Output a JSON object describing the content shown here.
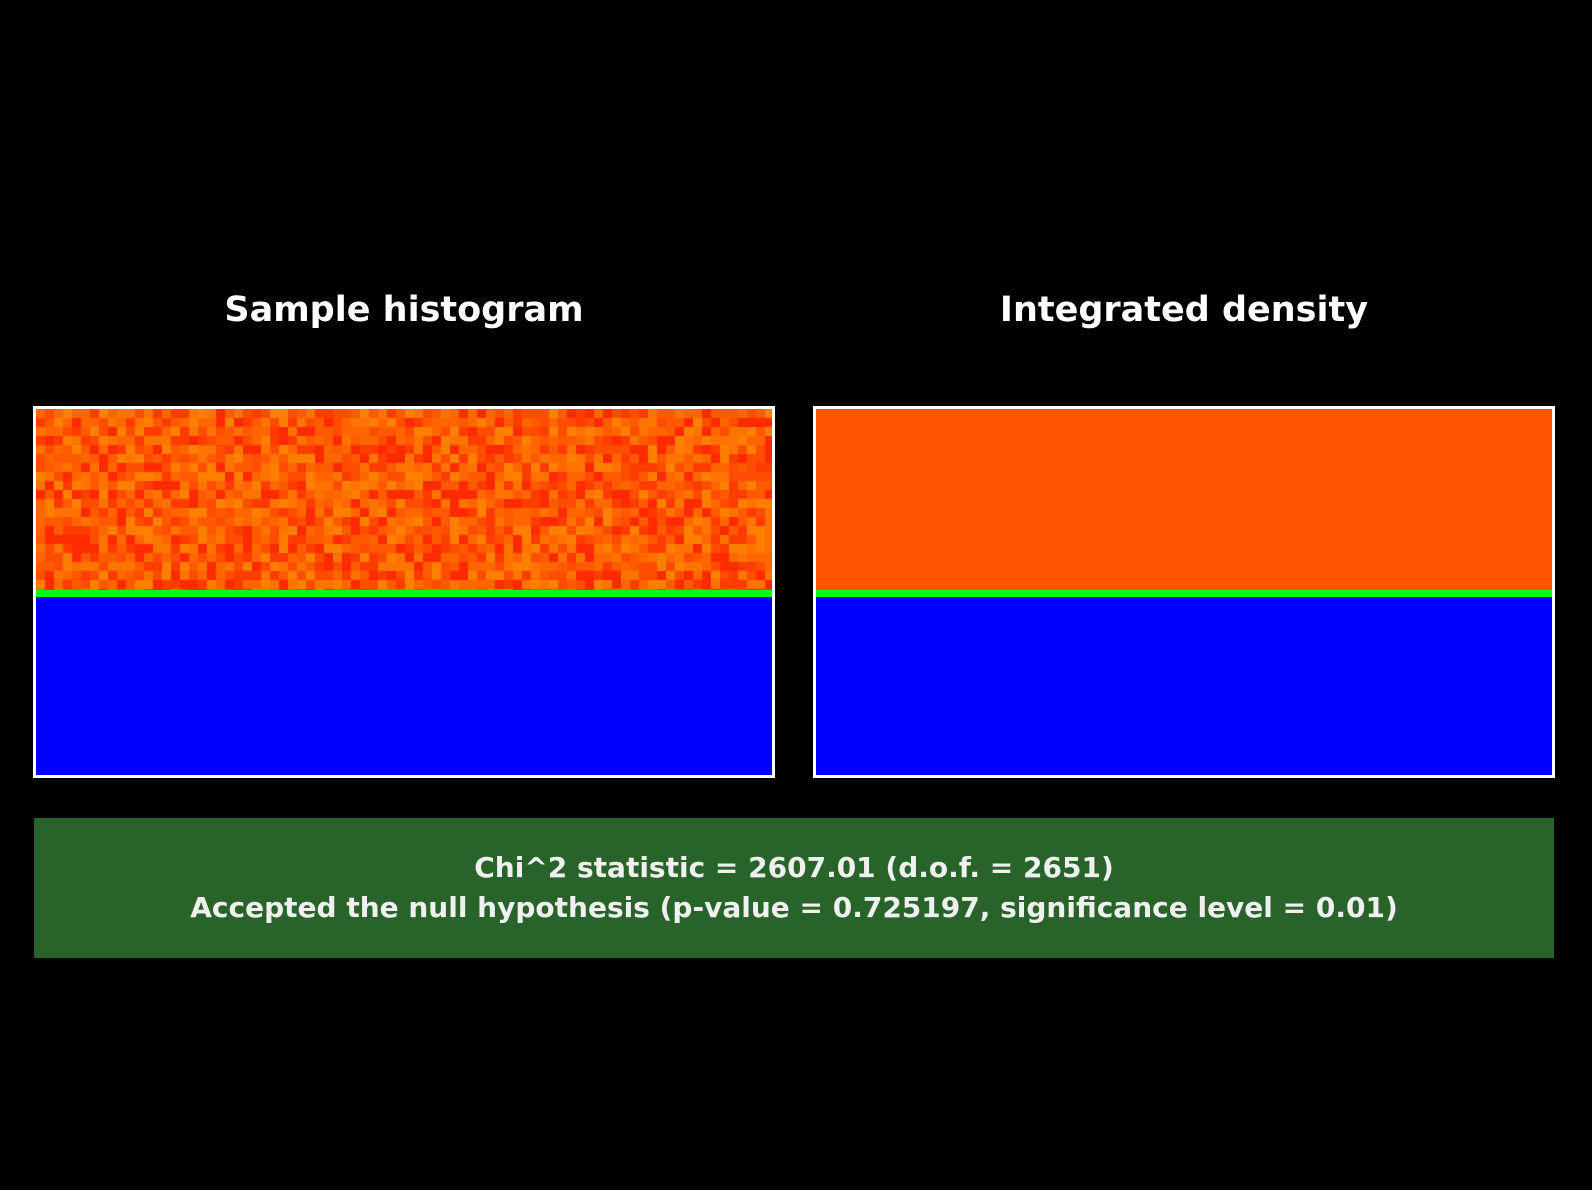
{
  "panels": {
    "left": {
      "title": "Sample histogram",
      "hot_color": "#ff5500",
      "boundary_color": "#00ff10",
      "cold_color": "#0000ff",
      "noise_palette": [
        "#ff2a00",
        "#ff3c00",
        "#ff4d00",
        "#ff5a00",
        "#ff6600",
        "#ff7300",
        "#ff8000"
      ]
    },
    "right": {
      "title": "Integrated density",
      "hot_color": "#ff5500",
      "boundary_color": "#00ff10",
      "cold_color": "#0000ff"
    }
  },
  "result": {
    "line1": "Chi^2 statistic = 2607.01 (d.o.f. = 2651)",
    "line2": "Accepted the null hypothesis (p-value = 0.725197, significance level = 0.01)",
    "background_color": "#28632a"
  }
}
